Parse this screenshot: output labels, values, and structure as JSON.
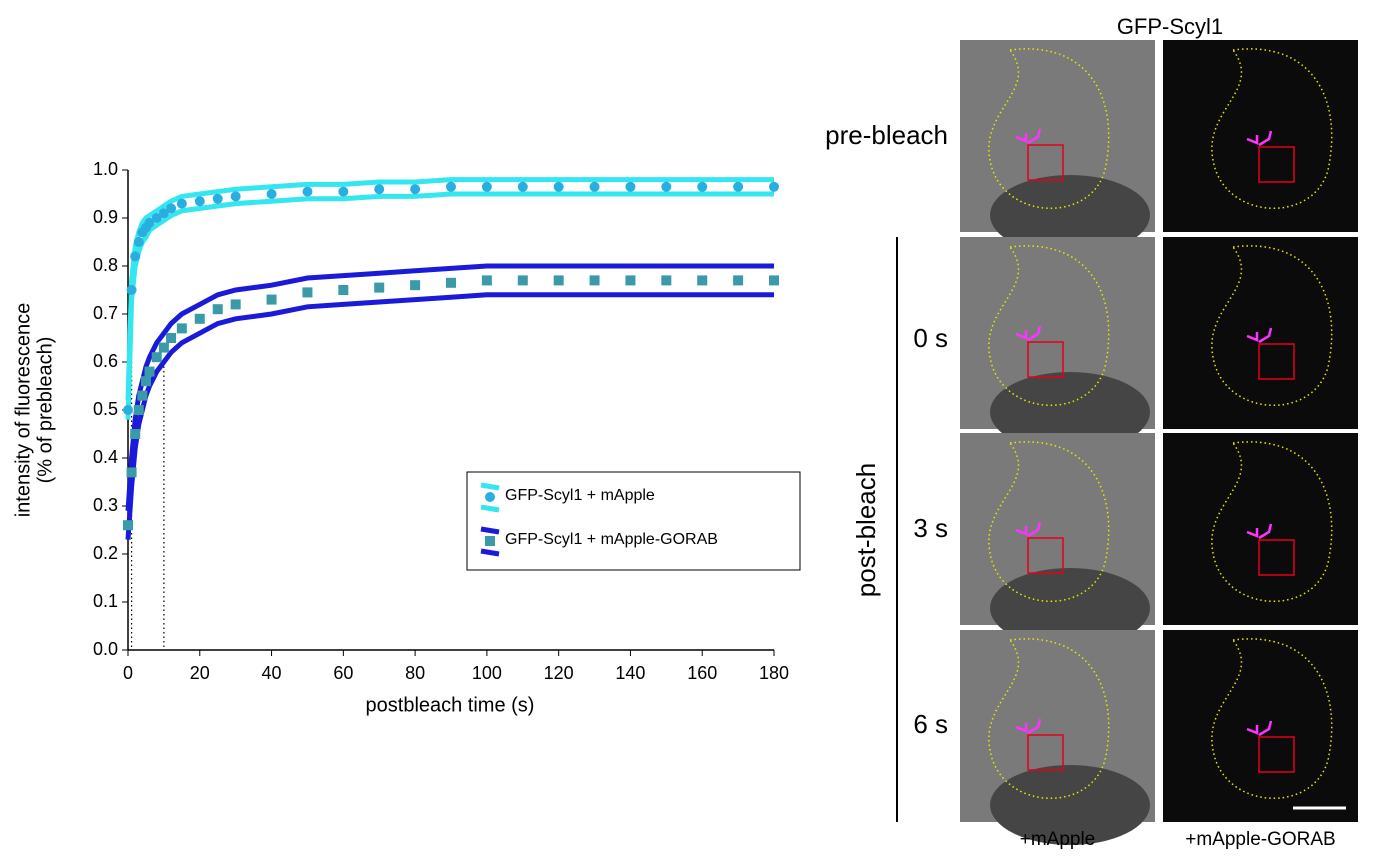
{
  "chart_data": {
    "type": "line",
    "ylabel": [
      "intensity of fluorescence",
      "(% of prebleach)"
    ],
    "xlabel": "postbleach time (s)",
    "x": [
      0,
      1,
      2,
      3,
      4,
      5,
      6,
      8,
      10,
      12,
      15,
      20,
      25,
      30,
      40,
      50,
      60,
      70,
      80,
      90,
      100,
      110,
      120,
      130,
      140,
      150,
      160,
      170,
      180
    ],
    "series": [
      {
        "name": "GFP-Scyl1 + mApple",
        "color": "#2aaee0",
        "error_color": "#33e6f0",
        "marker": "circle",
        "values": [
          0.5,
          0.75,
          0.82,
          0.85,
          0.87,
          0.88,
          0.89,
          0.9,
          0.91,
          0.92,
          0.93,
          0.935,
          0.94,
          0.945,
          0.95,
          0.955,
          0.955,
          0.96,
          0.96,
          0.965,
          0.965,
          0.965,
          0.965,
          0.965,
          0.965,
          0.965,
          0.965,
          0.965,
          0.965
        ],
        "errors": [
          0.02,
          0.02,
          0.02,
          0.02,
          0.02,
          0.02,
          0.015,
          0.015,
          0.015,
          0.015,
          0.015,
          0.015,
          0.015,
          0.015,
          0.015,
          0.015,
          0.015,
          0.015,
          0.015,
          0.015,
          0.015,
          0.015,
          0.015,
          0.015,
          0.015,
          0.015,
          0.015,
          0.015,
          0.015
        ]
      },
      {
        "name": "GFP-Scyl1 + mApple-GORAB",
        "color": "#3a9aa8",
        "error_color": "#1a1ad8",
        "marker": "square",
        "values": [
          0.26,
          0.37,
          0.45,
          0.5,
          0.53,
          0.56,
          0.58,
          0.61,
          0.63,
          0.65,
          0.67,
          0.69,
          0.71,
          0.72,
          0.73,
          0.745,
          0.75,
          0.755,
          0.76,
          0.765,
          0.77,
          0.77,
          0.77,
          0.77,
          0.77,
          0.77,
          0.77,
          0.77,
          0.77
        ],
        "errors": [
          0.03,
          0.03,
          0.03,
          0.03,
          0.03,
          0.03,
          0.03,
          0.03,
          0.03,
          0.03,
          0.03,
          0.03,
          0.03,
          0.03,
          0.03,
          0.03,
          0.03,
          0.03,
          0.03,
          0.03,
          0.03,
          0.03,
          0.03,
          0.03,
          0.03,
          0.03,
          0.03,
          0.03,
          0.03
        ]
      }
    ],
    "vlines": [
      1,
      10
    ],
    "xlim": [
      0,
      180
    ],
    "xticks": [
      0,
      20,
      40,
      60,
      80,
      100,
      120,
      140,
      160,
      180
    ],
    "ylim": [
      0,
      1
    ],
    "yticks": [
      {
        "value": 0,
        "label": "0.0"
      },
      0.1,
      0.2,
      0.3,
      0.4,
      0.5,
      0.6,
      0.7,
      0.8,
      0.9,
      {
        "value": 1,
        "label": "1.0"
      }
    ],
    "legend": "center right"
  },
  "panels": {
    "title": "GFP-Scyl1",
    "group_label": "post-bleach",
    "rows": [
      "pre-bleach",
      "0 s",
      "3 s",
      "6 s"
    ],
    "columns": [
      "+mApple",
      "+mApple-GORAB"
    ]
  }
}
